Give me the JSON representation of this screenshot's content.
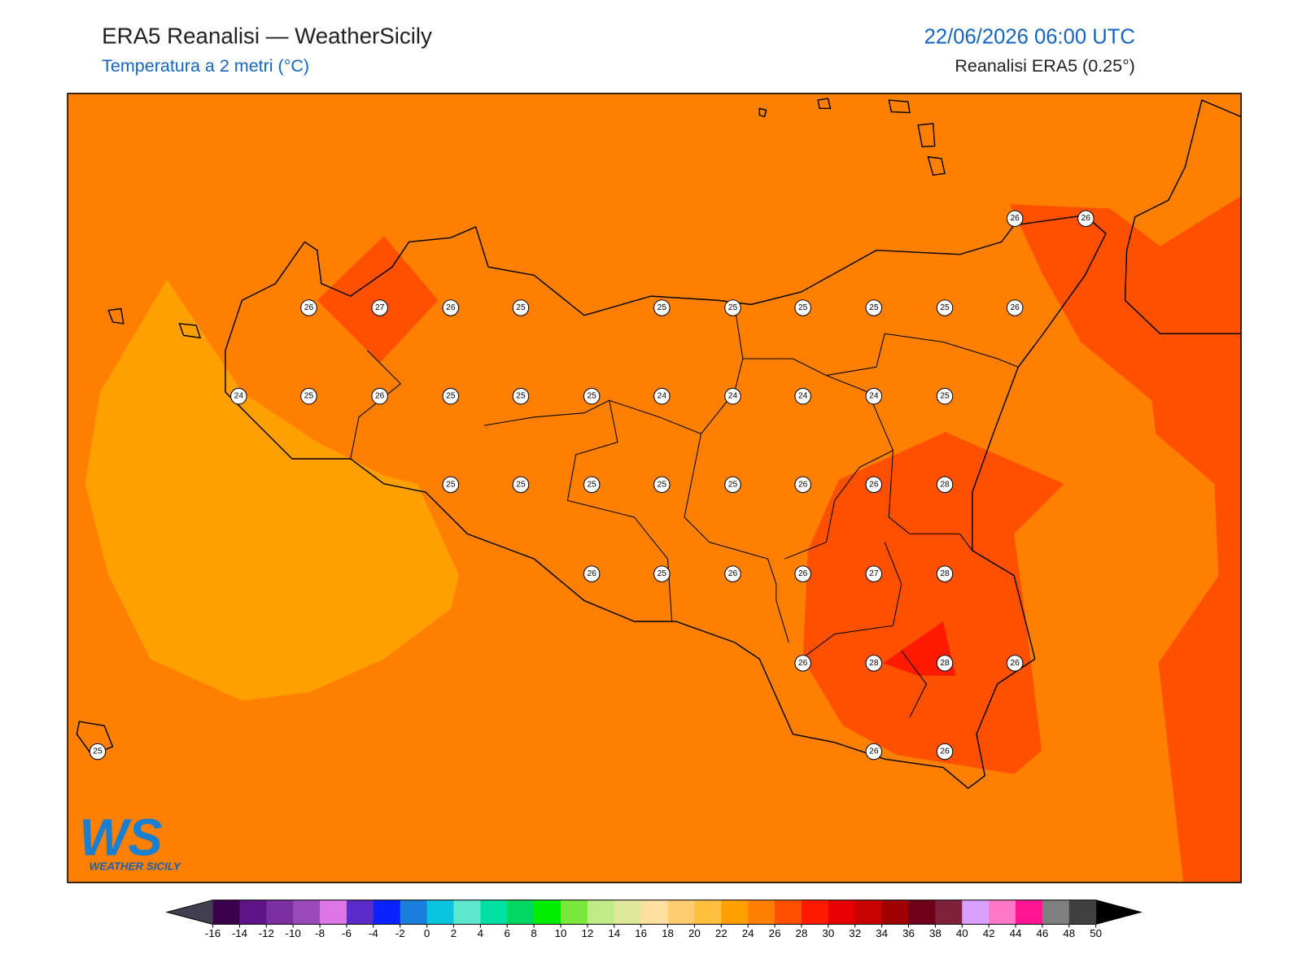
{
  "header": {
    "title": "ERA5 Reanalisi — WeatherSicily",
    "subtitle": "Temperatura a 2 metri (°C)",
    "datetime": "22/06/2026 06:00 UTC",
    "source": "Reanalisi ERA5 (0.25°)"
  },
  "stations": {
    "values": [
      26,
      26,
      26,
      27,
      26,
      25,
      25,
      25,
      25,
      25,
      25,
      26,
      24,
      25,
      26,
      25,
      25,
      25,
      24,
      24,
      24,
      24,
      25,
      25,
      25,
      25,
      25,
      25,
      26,
      26,
      28,
      26,
      25,
      26,
      26,
      27,
      28,
      26,
      28,
      28,
      26,
      25,
      26,
      26
    ]
  },
  "colorbar": {
    "ticks": [
      -16,
      -14,
      -12,
      -10,
      -8,
      -6,
      -4,
      -2,
      0,
      2,
      4,
      6,
      8,
      10,
      12,
      14,
      16,
      18,
      20,
      22,
      24,
      26,
      28,
      30,
      32,
      34,
      36,
      38,
      40,
      42,
      44,
      46,
      48,
      50
    ],
    "colors": [
      "#3a004a",
      "#5e1388",
      "#7a2ea0",
      "#9a4ab8",
      "#dd77e8",
      "#5a2bc8",
      "#0a22ff",
      "#1a7fdc",
      "#0ac4e0",
      "#5ee8d0",
      "#00e0a0",
      "#00d860",
      "#00ee00",
      "#7ae83a",
      "#c0ec88",
      "#dfe89a",
      "#ffe0a0",
      "#ffcc70",
      "#ffc040",
      "#ff9f00",
      "#ff8000",
      "#ff5000",
      "#ff1a00",
      "#e60000",
      "#c80000",
      "#a00000",
      "#70001a",
      "#80203a",
      "#d9a0ff",
      "#ff78c8",
      "#ff1493",
      "#808080",
      "#404040"
    ],
    "under_color": "#404050",
    "over_color": "#000000"
  },
  "logo": {
    "mark": "WS",
    "text": "WEATHER SICILY"
  }
}
